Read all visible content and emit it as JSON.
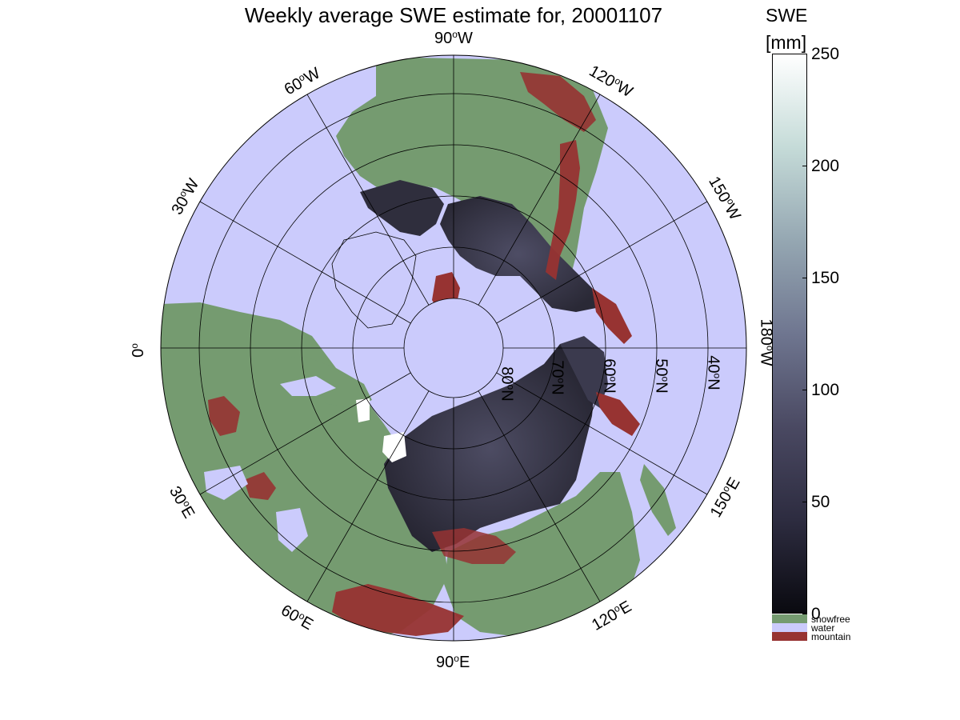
{
  "title": "Weekly average SWE estimate for, 20001107",
  "colorbar": {
    "title_line1": "SWE",
    "title_line2": "[mm]",
    "min": 0,
    "max": 250,
    "ticks": [
      "0",
      "50",
      "100",
      "150",
      "200",
      "250"
    ],
    "gradient": [
      "#0a0a10",
      "#2d2c40",
      "#4a4962",
      "#6f7690",
      "#95a7b2",
      "#c5dbd8",
      "#ffffff"
    ]
  },
  "classes": [
    {
      "label": "snowfree",
      "color": "#759b70"
    },
    {
      "label": "water",
      "color": "#cbcbfc"
    },
    {
      "label": "mountain",
      "color": "#973332"
    }
  ],
  "longitude_labels": [
    {
      "deg": "90",
      "suffix": "W",
      "name": "label-90w"
    },
    {
      "deg": "120",
      "suffix": "W",
      "name": "label-120w"
    },
    {
      "deg": "150",
      "suffix": "W",
      "name": "label-150w"
    },
    {
      "deg": "180",
      "suffix": "W",
      "name": "label-180w"
    },
    {
      "deg": "150",
      "suffix": "E",
      "name": "label-150e"
    },
    {
      "deg": "120",
      "suffix": "E",
      "name": "label-120e"
    },
    {
      "deg": "90",
      "suffix": "E",
      "name": "label-90e"
    },
    {
      "deg": "60",
      "suffix": "E",
      "name": "label-60e"
    },
    {
      "deg": "30",
      "suffix": "E",
      "name": "label-30e"
    },
    {
      "deg": "0",
      "suffix": "",
      "name": "label-0"
    },
    {
      "deg": "30",
      "suffix": "W",
      "name": "label-30w"
    },
    {
      "deg": "60",
      "suffix": "W",
      "name": "label-60w"
    }
  ],
  "latitude_labels": [
    {
      "deg": "80",
      "suffix": "N",
      "name": "label-80n"
    },
    {
      "deg": "70",
      "suffix": "N",
      "name": "label-70n"
    },
    {
      "deg": "60",
      "suffix": "N",
      "name": "label-60n"
    },
    {
      "deg": "50",
      "suffix": "N",
      "name": "label-50n"
    },
    {
      "deg": "40",
      "suffix": "N",
      "name": "label-40n"
    }
  ]
}
